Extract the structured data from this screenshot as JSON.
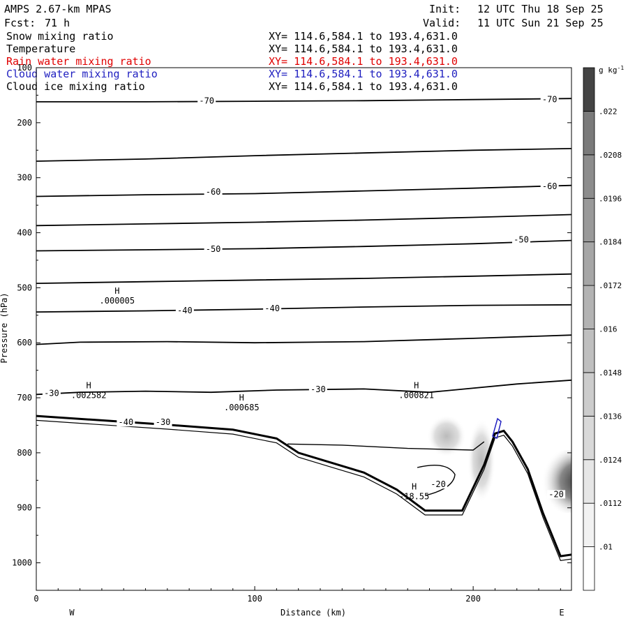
{
  "header": {
    "model": "AMPS 2.67-km MPAS",
    "forecast_label": "Fcst:",
    "forecast_hours": "71 h",
    "init_label": "Init:",
    "init_time": "12 UTC Thu 18 Sep 25",
    "valid_label": "Valid:",
    "valid_time": "11 UTC Sun 21 Sep 25"
  },
  "fields": [
    {
      "name": "Snow mixing ratio",
      "xy": "XY= 114.6,584.1 to 193.4,631.0",
      "color": "#000000"
    },
    {
      "name": "Temperature",
      "xy": "XY= 114.6,584.1 to 193.4,631.0",
      "color": "#000000"
    },
    {
      "name": "Rain water mixing ratio",
      "xy": "XY= 114.6,584.1 to 193.4,631.0",
      "color": "#e00000"
    },
    {
      "name": "Cloud water mixing ratio",
      "xy": "XY= 114.6,584.1 to 193.4,631.0",
      "color": "#2020c0"
    },
    {
      "name": "Cloud ice mixing ratio",
      "xy": "XY= 114.6,584.1 to 193.4,631.0",
      "color": "#000000"
    }
  ],
  "chart_data": {
    "type": "contour",
    "title": "AMPS 2.67-km MPAS",
    "xlabel": "Distance (km)",
    "ylabel": "Pressure (hPa)",
    "xlim": [
      0,
      245
    ],
    "ylim": [
      1050,
      100
    ],
    "y_scale": "linear",
    "x_ticks": [
      0,
      100,
      200
    ],
    "y_ticks": [
      100,
      200,
      300,
      400,
      500,
      600,
      700,
      800,
      900,
      1000
    ],
    "x_end_labels": {
      "left": "W",
      "right": "E"
    },
    "colorbar": {
      "units": "g kg",
      "units_exp": "-1",
      "levels": [
        ".01",
        ".0112",
        ".0124",
        ".0136",
        ".0148",
        ".016",
        ".0172",
        ".0184",
        ".0196",
        ".0208",
        ".022"
      ],
      "colors": [
        "#ffffff",
        "#f2f2f2",
        "#e6e6e6",
        "#d9d9d9",
        "#cccccc",
        "#bfbfbf",
        "#b3b3b3",
        "#a6a6a6",
        "#999999",
        "#8c8c8c",
        "#7a7a7a",
        "#444444"
      ]
    },
    "isotherms": [
      {
        "label": "-70",
        "label_at": [
          [
            78,
            163
          ],
          [
            235,
            160
          ]
        ],
        "points": [
          [
            0,
            162
          ],
          [
            50,
            162
          ],
          [
            100,
            161
          ],
          [
            150,
            160
          ],
          [
            200,
            158
          ],
          [
            245,
            156
          ]
        ]
      },
      {
        "label": "",
        "label_at": [],
        "points": [
          [
            0,
            270
          ],
          [
            50,
            266
          ],
          [
            100,
            260
          ],
          [
            150,
            255
          ],
          [
            200,
            250
          ],
          [
            245,
            247
          ]
        ]
      },
      {
        "label": "-60",
        "label_at": [
          [
            81,
            328
          ],
          [
            235,
            318
          ]
        ],
        "points": [
          [
            0,
            334
          ],
          [
            50,
            331
          ],
          [
            100,
            329
          ],
          [
            150,
            324
          ],
          [
            200,
            319
          ],
          [
            245,
            314
          ]
        ]
      },
      {
        "label": "",
        "label_at": [],
        "points": [
          [
            0,
            387
          ],
          [
            50,
            384
          ],
          [
            100,
            381
          ],
          [
            150,
            377
          ],
          [
            200,
            372
          ],
          [
            245,
            367
          ]
        ]
      },
      {
        "label": "-50",
        "label_at": [
          [
            81,
            432
          ],
          [
            222,
            415
          ]
        ],
        "points": [
          [
            0,
            433
          ],
          [
            50,
            431
          ],
          [
            100,
            429
          ],
          [
            150,
            425
          ],
          [
            200,
            420
          ],
          [
            245,
            414
          ]
        ]
      },
      {
        "label": "",
        "label_at": [],
        "points": [
          [
            0,
            492
          ],
          [
            50,
            489
          ],
          [
            100,
            486
          ],
          [
            150,
            483
          ],
          [
            200,
            479
          ],
          [
            245,
            475
          ]
        ]
      },
      {
        "label": "-40",
        "label_at": [
          [
            68,
            544
          ],
          [
            108,
            540
          ]
        ],
        "points": [
          [
            0,
            544
          ],
          [
            50,
            542
          ],
          [
            100,
            539
          ],
          [
            150,
            535
          ],
          [
            200,
            532
          ],
          [
            245,
            531
          ]
        ]
      },
      {
        "label": "",
        "label_at": [],
        "points": [
          [
            0,
            603
          ],
          [
            20,
            599
          ],
          [
            60,
            598
          ],
          [
            100,
            600
          ],
          [
            150,
            598
          ],
          [
            200,
            592
          ],
          [
            245,
            586
          ]
        ]
      },
      {
        "label": "-30",
        "label_at": [
          [
            7,
            694
          ],
          [
            129,
            687
          ]
        ],
        "points": [
          [
            0,
            694
          ],
          [
            20,
            690
          ],
          [
            50,
            688
          ],
          [
            80,
            690
          ],
          [
            110,
            686
          ],
          [
            150,
            684
          ],
          [
            180,
            690
          ],
          [
            220,
            675
          ],
          [
            245,
            668
          ]
        ]
      }
    ],
    "cold_isotherm": {
      "label": "-20",
      "label_at": [
        [
          183,
          860
        ],
        [
          238,
          878
        ]
      ],
      "points": [
        [
          115,
          784
        ],
        [
          140,
          786
        ],
        [
          170,
          792
        ],
        [
          200,
          795
        ],
        [
          205,
          780
        ]
      ]
    },
    "terrain": [
      [
        0,
        733
      ],
      [
        30,
        741
      ],
      [
        60,
        749
      ],
      [
        90,
        758
      ],
      [
        110,
        774
      ],
      [
        120,
        800
      ],
      [
        135,
        818
      ],
      [
        150,
        836
      ],
      [
        165,
        867
      ],
      [
        178,
        905
      ],
      [
        195,
        905
      ],
      [
        205,
        822
      ],
      [
        210,
        765
      ],
      [
        214,
        760
      ],
      [
        218,
        780
      ],
      [
        225,
        830
      ],
      [
        232,
        910
      ],
      [
        240,
        988
      ],
      [
        245,
        985
      ]
    ],
    "maxima": [
      {
        "label": "H",
        "value": ".000005",
        "x": 37,
        "p": 526
      },
      {
        "label": "H",
        "value": ".002582",
        "x": 24,
        "p": 698
      },
      {
        "label": "H",
        "value": ".000685",
        "x": 94,
        "p": 720
      },
      {
        "label": "H",
        "value": ".000821",
        "x": 174,
        "p": 698
      },
      {
        "label": "H",
        "value": "-18.55",
        "x": 173,
        "p": 882
      }
    ],
    "annotations": [
      {
        "text": "-40",
        "x": 41,
        "p": 747
      },
      {
        "text": "-30",
        "x": 58,
        "p": 747
      },
      {
        "text": "-20",
        "x": 184,
        "p": 860
      },
      {
        "text": "-20",
        "x": 238,
        "p": 878
      }
    ]
  }
}
